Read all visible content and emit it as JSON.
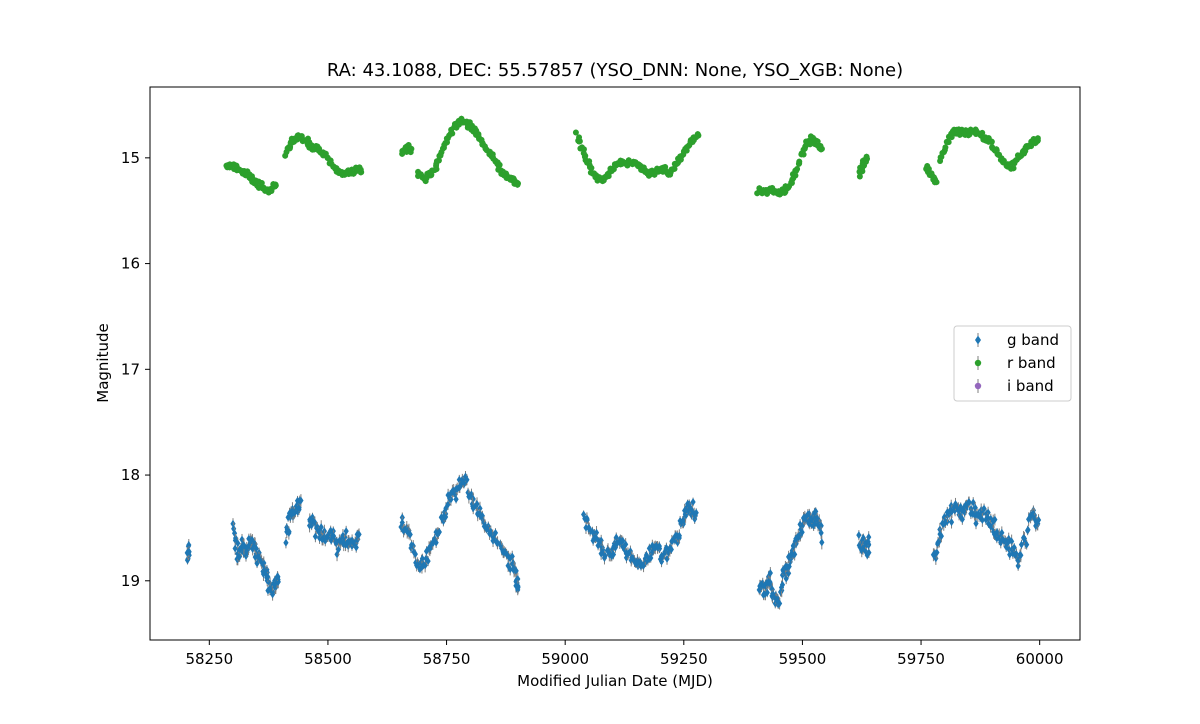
{
  "chart_data": {
    "type": "scatter",
    "title": "RA: 43.1088, DEC: 55.57857 (YSO_DNN: None, YSO_XGB: None)",
    "xlabel": "Modified Julian Date (MJD)",
    "ylabel": "Magnitude",
    "xlim": [
      58125,
      60085
    ],
    "ylim": [
      19.56,
      14.33
    ],
    "y_inverted": true,
    "grid": false,
    "legend_position": "center-right",
    "x_ticks": [
      58250,
      58500,
      58750,
      59000,
      59250,
      59500,
      59750,
      60000
    ],
    "x_tick_labels": [
      "58250",
      "58500",
      "58750",
      "59000",
      "59250",
      "59500",
      "59750",
      "60000"
    ],
    "y_ticks": [
      15,
      16,
      17,
      18,
      19
    ],
    "y_tick_labels": [
      "15",
      "16",
      "17",
      "18",
      "19"
    ],
    "series": [
      {
        "name": "g band",
        "color": "#1f77b4",
        "marker": "diamond",
        "segments": [
          {
            "x": [
              58205,
              58206
            ],
            "y": [
              18.73,
              18.74
            ]
          },
          {
            "x": [
              58300,
              58310,
              58320,
              58330,
              58340,
              58350,
              58360,
              58370,
              58380,
              58390,
              58395
            ],
            "y": [
              18.45,
              18.8,
              18.65,
              18.7,
              18.6,
              18.75,
              18.85,
              18.9,
              19.1,
              19.0,
              18.95
            ]
          },
          {
            "x": [
              58410,
              58420,
              58430,
              58440
            ],
            "y": [
              18.6,
              18.4,
              18.35,
              18.3
            ]
          },
          {
            "x": [
              58460,
              58475,
              58490,
              58505,
              58520,
              58535,
              58550,
              58565
            ],
            "y": [
              18.45,
              18.5,
              18.6,
              18.55,
              18.7,
              18.6,
              18.65,
              18.6
            ]
          },
          {
            "x": [
              58655,
              58670,
              58685,
              58700,
              58715,
              58730,
              58745,
              58760,
              58775,
              58790,
              58805,
              58820,
              58835,
              58850,
              58865,
              58880,
              58895,
              58900
            ],
            "y": [
              18.45,
              18.55,
              18.8,
              18.85,
              18.7,
              18.6,
              18.35,
              18.2,
              18.1,
              18.05,
              18.25,
              18.4,
              18.5,
              18.6,
              18.7,
              18.8,
              18.95,
              19.05
            ]
          },
          {
            "x": [
              59040,
              59055,
              59070,
              59085,
              59100,
              59115,
              59130,
              59145,
              59160,
              59175,
              59190,
              59205,
              59220,
              59235,
              59250,
              59260,
              59275
            ],
            "y": [
              18.4,
              18.55,
              18.65,
              18.75,
              18.7,
              18.6,
              18.7,
              18.8,
              18.85,
              18.75,
              18.65,
              18.8,
              18.7,
              18.6,
              18.4,
              18.3,
              18.35
            ]
          },
          {
            "x": [
              59410,
              59420,
              59430,
              59440,
              59450,
              59460,
              59470,
              59480,
              59490,
              59500,
              59510,
              59520,
              59530,
              59540
            ],
            "y": [
              19.05,
              19.1,
              19.0,
              19.15,
              19.2,
              18.95,
              18.85,
              18.7,
              18.6,
              18.45,
              18.4,
              18.45,
              18.4,
              18.55
            ]
          },
          {
            "x": [
              59620,
              59630,
              59640
            ],
            "y": [
              18.6,
              18.7,
              18.65
            ]
          },
          {
            "x": [
              59775,
              59790,
              59805,
              59820,
              59835,
              59850,
              59865,
              59880,
              59895,
              59910,
              59925,
              59940,
              59955,
              59970,
              59985,
              59995
            ],
            "y": [
              18.8,
              18.6,
              18.4,
              18.3,
              18.35,
              18.3,
              18.4,
              18.35,
              18.45,
              18.55,
              18.6,
              18.7,
              18.8,
              18.6,
              18.35,
              18.45
            ]
          }
        ]
      },
      {
        "name": "r band",
        "color": "#2ca02c",
        "marker": "circle",
        "segments": [
          {
            "x": [
              58285,
              58300,
              58315,
              58330,
              58345,
              58360,
              58375,
              58390
            ],
            "y": [
              15.08,
              15.08,
              15.12,
              15.15,
              15.22,
              15.28,
              15.32,
              15.25
            ]
          },
          {
            "x": [
              58410,
              58425,
              58440,
              58455,
              58470,
              58485,
              58500,
              58515,
              58530,
              58545,
              58560,
              58568
            ],
            "y": [
              14.95,
              14.85,
              14.8,
              14.85,
              14.9,
              14.95,
              15.0,
              15.1,
              15.15,
              15.15,
              15.1,
              15.12
            ]
          },
          {
            "x": [
              58655,
              58665,
              58675
            ],
            "y": [
              14.95,
              14.9,
              14.92
            ]
          },
          {
            "x": [
              58690,
              58705,
              58720,
              58735,
              58750,
              58765,
              58780,
              58795,
              58810,
              58825,
              58840,
              58855,
              58870,
              58885,
              58900
            ],
            "y": [
              15.15,
              15.2,
              15.15,
              15.0,
              14.85,
              14.7,
              14.65,
              14.68,
              14.75,
              14.85,
              14.95,
              15.05,
              15.15,
              15.2,
              15.25
            ]
          },
          {
            "x": [
              59025,
              59040,
              59055,
              59070,
              59085,
              59100,
              59115,
              59130,
              59145,
              59160,
              59175,
              59190,
              59205,
              59220,
              59235,
              59250,
              59265,
              59280
            ],
            "y": [
              14.78,
              14.95,
              15.1,
              15.2,
              15.2,
              15.1,
              15.05,
              15.03,
              15.05,
              15.1,
              15.15,
              15.15,
              15.1,
              15.15,
              15.05,
              14.95,
              14.85,
              14.78
            ]
          },
          {
            "x": [
              59405,
              59420,
              59435,
              59450,
              59465,
              59480,
              59495,
              59510,
              59525,
              59540
            ],
            "y": [
              15.3,
              15.32,
              15.3,
              15.33,
              15.3,
              15.2,
              15.0,
              14.85,
              14.82,
              14.92
            ]
          },
          {
            "x": [
              59620,
              59625,
              59635
            ],
            "y": [
              15.15,
              15.1,
              15.0
            ]
          },
          {
            "x": [
              59760,
              59770,
              59780
            ],
            "y": [
              15.08,
              15.15,
              15.22
            ]
          },
          {
            "x": [
              59790,
              59805,
              59820,
              59835,
              59850,
              59865,
              59880,
              59895,
              59910,
              59925,
              59940,
              59955,
              59970,
              59985,
              59995
            ],
            "y": [
              15.03,
              14.85,
              14.75,
              14.75,
              14.78,
              14.75,
              14.8,
              14.85,
              14.95,
              15.05,
              15.08,
              15.0,
              14.92,
              14.85,
              14.85
            ]
          }
        ]
      },
      {
        "name": "i band",
        "color": "#9467bd",
        "marker": "circle",
        "segments": []
      }
    ]
  }
}
